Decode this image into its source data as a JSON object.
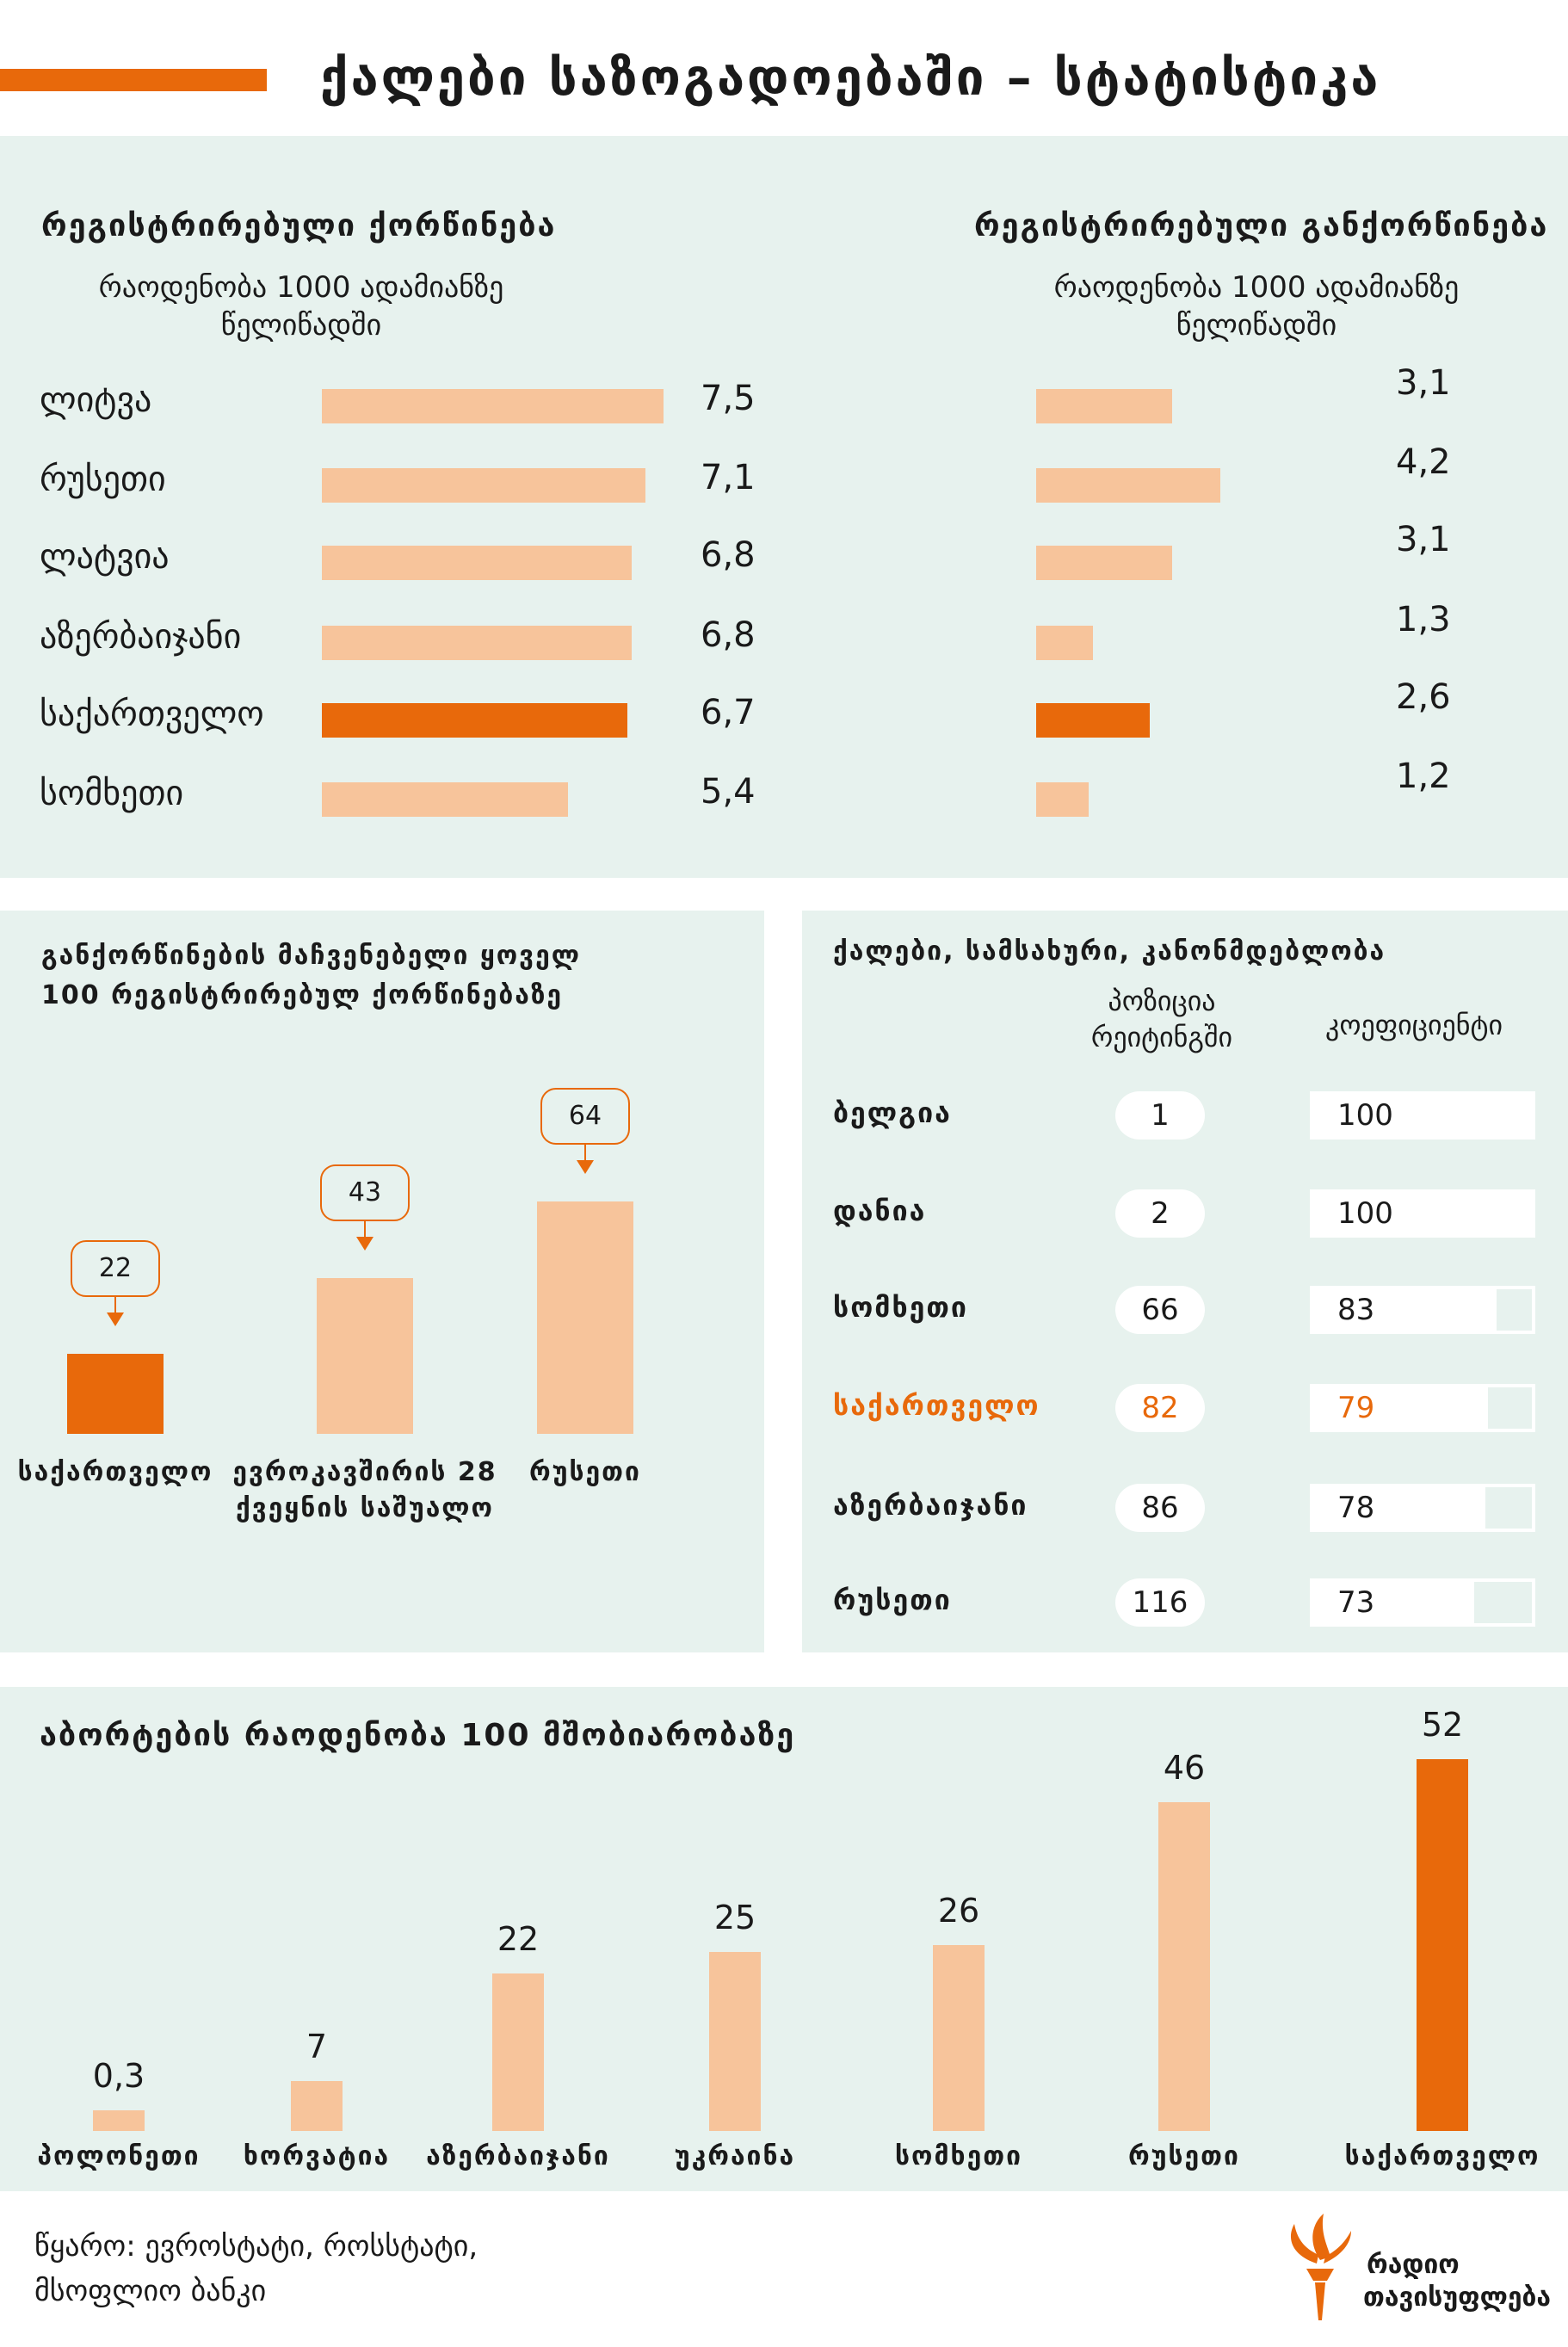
{
  "title": "ქალები საზოგადოებაში – სტატისტიკა",
  "colors": {
    "accent": "#e8690b",
    "light": "#f7c49b",
    "panel": "#e7f2ee"
  },
  "marriage": {
    "heading": "რეგისტრირებული ქორწინება",
    "subtitle": "რაოდენობა 1000 ადამიანზე წელიწადში"
  },
  "divorce": {
    "heading": "რეგისტრირებული განქორწინება",
    "subtitle": "რაოდენობა 1000 ადამიანზე წელიწადში"
  },
  "ratio": {
    "heading": "განქორწინების მაჩვენებელი ყოველ 100 რეგისტრირებულ ქორწინებაზე"
  },
  "work": {
    "heading": "ქალები, სამსახური, კანონმდებლობა",
    "col_rank": "პოზიცია რეიტინგში",
    "col_coef": "კოეფიციენტი"
  },
  "abortion": {
    "heading": "აბორტების რაოდენობა 100 მშობიარობაზე"
  },
  "source": "წყარო: ევროსტატი, როსსტატი, მსოფლიო ბანკი",
  "logo": {
    "line1": "რადიო",
    "line2": "თავისუფლება",
    "icon": "torch-logo-icon"
  },
  "chart_data": [
    {
      "type": "bar",
      "title": "რეგისტრირებული ქორწინება",
      "subtitle": "რაოდენობა 1000 ადამიანზე წელიწადში",
      "categories": [
        "ლიტვა",
        "რუსეთი",
        "ლატვია",
        "აზერბაიჯანი",
        "საქართველო",
        "სომხეთი"
      ],
      "values": [
        7.5,
        7.1,
        6.8,
        6.8,
        6.7,
        5.4
      ],
      "labels": [
        "7,5",
        "7,1",
        "6,8",
        "6,8",
        "6,7",
        "5,4"
      ],
      "highlight": "საქართველო",
      "xlim": [
        0,
        7.5
      ]
    },
    {
      "type": "bar",
      "title": "რეგისტრირებული განქორწინება",
      "subtitle": "რაოდენობა 1000 ადამიანზე წელიწადში",
      "categories": [
        "ლიტვა",
        "რუსეთი",
        "ლატვია",
        "აზერბაიჯანი",
        "საქართველო",
        "სომხეთი"
      ],
      "values": [
        3.1,
        4.2,
        3.1,
        1.3,
        2.6,
        1.2
      ],
      "labels": [
        "3,1",
        "4,2",
        "3,1",
        "1,3",
        "2,6",
        "1,2"
      ],
      "highlight": "საქართველო",
      "xlim": [
        0,
        4.2
      ]
    },
    {
      "type": "bar",
      "title": "განქორწინების მაჩვენებელი ყოველ 100 რეგისტრირებულ ქორწინებაზე",
      "categories": [
        "საქართველო",
        "ევროკავშირის 28 ქვეყნის საშუალო",
        "რუსეთი"
      ],
      "values": [
        22,
        43,
        64
      ],
      "labels": [
        "22",
        "43",
        "64"
      ],
      "highlight": "საქართველო",
      "ylim": [
        0,
        64
      ]
    },
    {
      "type": "table",
      "title": "ქალები, სამსახური, კანონმდებლობა",
      "columns": [
        "პოზიცია რეიტინგში",
        "კოეფიციენტი"
      ],
      "rows": [
        {
          "country": "ბელგია",
          "rank": "1",
          "coef": 100
        },
        {
          "country": "დანია",
          "rank": "2",
          "coef": 100
        },
        {
          "country": "სომხეთი",
          "rank": "66",
          "coef": 83
        },
        {
          "country": "საქართველო",
          "rank": "82",
          "coef": 79
        },
        {
          "country": "აზერბაიჯანი",
          "rank": "86",
          "coef": 78
        },
        {
          "country": "რუსეთი",
          "rank": "116",
          "coef": 73
        }
      ],
      "highlight": "საქართველო"
    },
    {
      "type": "bar",
      "title": "აბორტების რაოდენობა 100 მშობიარობაზე",
      "categories": [
        "პოლონეთი",
        "ხორვატია",
        "აზერბაიჯანი",
        "უკრაინა",
        "სომხეთი",
        "რუსეთი",
        "საქართველო"
      ],
      "values": [
        0.3,
        7,
        22,
        25,
        26,
        46,
        52
      ],
      "labels": [
        "0,3",
        "7",
        "22",
        "25",
        "26",
        "46",
        "52"
      ],
      "highlight": "საქართველო",
      "ylim": [
        0,
        52
      ]
    }
  ]
}
